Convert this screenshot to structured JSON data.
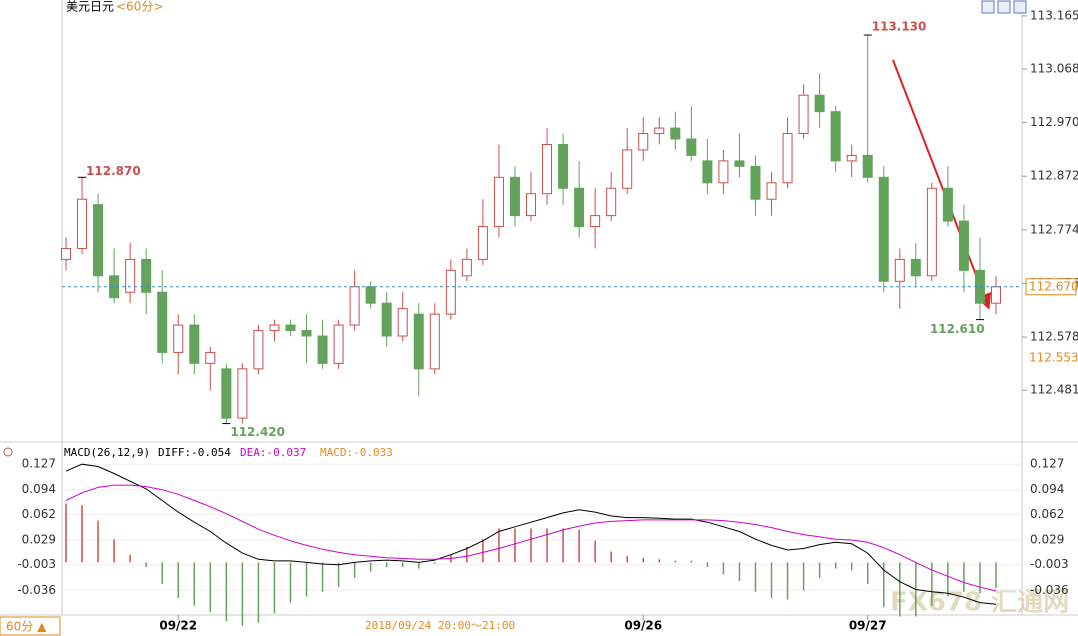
{
  "chart_data": [
    {
      "type": "candlestick",
      "title": "美元日元",
      "subtitle": "<60分>",
      "ylim": [
        112.39,
        113.194
      ],
      "yticks": [
        113.165,
        113.068,
        {
          "value": 112.97,
          "label": "112.970"
        },
        112.872,
        112.774,
        112.676,
        112.578,
        112.481
      ],
      "last_price": {
        "value": 112.67,
        "label": "112.670"
      },
      "side_label": "112.553",
      "annotations": [
        "112.870",
        "113.130",
        "112.420",
        "112.610"
      ],
      "up_color": "#c9504f",
      "down_color": "#63a35c",
      "xticks": [
        {
          "value": 7,
          "label": "09/22"
        },
        {
          "value": 36,
          "label": "09/26"
        },
        {
          "value": 50,
          "label": "09/27"
        }
      ],
      "period": "60分 ▲",
      "time_label": "2018/09/24 20:00～21:00",
      "watermark": "FX678 汇通网",
      "open": [
        112.72,
        112.74,
        112.82,
        112.69,
        112.66,
        112.72,
        112.66,
        112.55,
        112.6,
        112.53,
        112.52,
        112.43,
        112.52,
        112.59,
        112.6,
        112.59,
        112.58,
        112.53,
        112.6,
        112.67,
        112.64,
        112.58,
        112.62,
        112.52,
        112.62,
        112.69,
        112.72,
        112.78,
        112.87,
        112.8,
        112.84,
        112.93,
        112.85,
        112.78,
        112.8,
        112.85,
        112.92,
        112.95,
        112.96,
        112.94,
        112.9,
        112.86,
        112.9,
        112.89,
        112.83,
        112.86,
        112.95,
        113.02,
        112.99,
        112.9,
        112.91,
        112.87,
        112.68,
        112.72,
        112.69,
        112.85,
        112.79,
        112.7,
        112.64
      ],
      "high": [
        112.76,
        112.87,
        112.84,
        112.74,
        112.75,
        112.74,
        112.7,
        112.62,
        112.62,
        112.56,
        112.53,
        112.53,
        112.6,
        112.61,
        112.61,
        112.62,
        112.61,
        112.61,
        112.7,
        112.68,
        112.66,
        112.66,
        112.64,
        112.64,
        112.72,
        112.74,
        112.83,
        112.93,
        112.89,
        112.88,
        112.96,
        112.95,
        112.9,
        112.85,
        112.88,
        112.96,
        112.98,
        112.98,
        112.99,
        113.0,
        112.94,
        112.92,
        112.95,
        112.91,
        112.88,
        112.98,
        113.04,
        113.06,
        113.0,
        112.93,
        113.13,
        112.89,
        112.74,
        112.75,
        112.86,
        112.89,
        112.82,
        112.76,
        112.69
      ],
      "low": [
        112.7,
        112.73,
        112.66,
        112.64,
        112.64,
        112.62,
        112.53,
        112.51,
        112.51,
        112.48,
        112.42,
        112.42,
        112.51,
        112.57,
        112.58,
        112.53,
        112.52,
        112.52,
        112.59,
        112.63,
        112.56,
        112.57,
        112.47,
        112.51,
        112.61,
        112.68,
        112.71,
        112.76,
        112.78,
        112.79,
        112.82,
        112.82,
        112.76,
        112.74,
        112.79,
        112.84,
        112.9,
        112.93,
        112.92,
        112.9,
        112.84,
        112.84,
        112.87,
        112.8,
        112.8,
        112.85,
        112.94,
        112.96,
        112.88,
        112.87,
        112.86,
        112.66,
        112.63,
        112.67,
        112.68,
        112.78,
        112.66,
        112.61,
        112.62
      ],
      "close": [
        112.74,
        112.83,
        112.69,
        112.65,
        112.72,
        112.66,
        112.55,
        112.6,
        112.53,
        112.55,
        112.43,
        112.52,
        112.59,
        112.6,
        112.59,
        112.58,
        112.53,
        112.6,
        112.67,
        112.64,
        112.58,
        112.63,
        112.52,
        112.62,
        112.7,
        112.72,
        112.78,
        112.87,
        112.8,
        112.84,
        112.93,
        112.85,
        112.78,
        112.8,
        112.85,
        112.92,
        112.95,
        112.96,
        112.94,
        112.91,
        112.86,
        112.9,
        112.89,
        112.83,
        112.86,
        112.95,
        113.02,
        112.99,
        112.9,
        112.91,
        112.87,
        112.68,
        112.72,
        112.69,
        112.85,
        112.79,
        112.7,
        112.64,
        112.67
      ]
    },
    {
      "type": "macd",
      "title": "MACD(26,12,9)",
      "diff_label": "DIFF:-0.054",
      "dea_label": "DEA:-0.037",
      "macd_label": "MACD:-0.033",
      "ylim": [
        -0.068,
        0.135
      ],
      "yticks": [
        0.127,
        0.094,
        0.062,
        0.029,
        -0.003,
        -0.036
      ],
      "series": [
        {
          "name": "DIFF",
          "color": "#000000",
          "values": [
            0.118,
            0.127,
            0.124,
            0.115,
            0.105,
            0.095,
            0.08,
            0.065,
            0.052,
            0.04,
            0.025,
            0.012,
            0.004,
            0.002,
            0.002,
            0.0,
            -0.002,
            -0.003,
            0.0,
            0.002,
            0.003,
            0.002,
            0.0,
            0.003,
            0.01,
            0.018,
            0.028,
            0.04,
            0.046,
            0.052,
            0.058,
            0.064,
            0.068,
            0.065,
            0.06,
            0.058,
            0.058,
            0.057,
            0.056,
            0.056,
            0.052,
            0.046,
            0.04,
            0.03,
            0.022,
            0.016,
            0.018,
            0.023,
            0.026,
            0.024,
            0.012,
            -0.01,
            -0.025,
            -0.035,
            -0.038,
            -0.04,
            -0.045,
            -0.052,
            -0.054
          ]
        },
        {
          "name": "DEA",
          "color": "#cc00cc",
          "values": [
            0.08,
            0.09,
            0.097,
            0.1,
            0.1,
            0.098,
            0.094,
            0.088,
            0.08,
            0.072,
            0.063,
            0.053,
            0.043,
            0.035,
            0.028,
            0.022,
            0.017,
            0.013,
            0.01,
            0.008,
            0.006,
            0.005,
            0.004,
            0.004,
            0.005,
            0.008,
            0.013,
            0.018,
            0.024,
            0.03,
            0.036,
            0.042,
            0.047,
            0.051,
            0.053,
            0.054,
            0.055,
            0.055,
            0.055,
            0.055,
            0.055,
            0.054,
            0.052,
            0.049,
            0.045,
            0.04,
            0.036,
            0.033,
            0.03,
            0.029,
            0.026,
            0.019,
            0.01,
            0.0,
            -0.01,
            -0.018,
            -0.026,
            -0.032,
            -0.037
          ]
        },
        {
          "name": "MACD",
          "color": "#c9504f",
          "values": [
            0.076,
            0.074,
            0.054,
            0.03,
            0.01,
            -0.006,
            -0.028,
            -0.046,
            -0.056,
            -0.064,
            -0.076,
            -0.082,
            -0.078,
            -0.066,
            -0.052,
            -0.044,
            -0.038,
            -0.032,
            -0.02,
            -0.012,
            -0.006,
            -0.006,
            -0.008,
            -0.002,
            0.01,
            0.02,
            0.03,
            0.044,
            0.044,
            0.044,
            0.044,
            0.044,
            0.042,
            0.028,
            0.014,
            0.008,
            0.006,
            0.004,
            0.002,
            0.002,
            -0.006,
            -0.016,
            -0.024,
            -0.038,
            -0.046,
            -0.048,
            -0.036,
            -0.02,
            -0.008,
            -0.01,
            -0.028,
            -0.058,
            -0.07,
            -0.07,
            -0.056,
            -0.044,
            -0.038,
            -0.04,
            -0.033
          ]
        }
      ],
      "down_color": "#63a35c"
    }
  ]
}
